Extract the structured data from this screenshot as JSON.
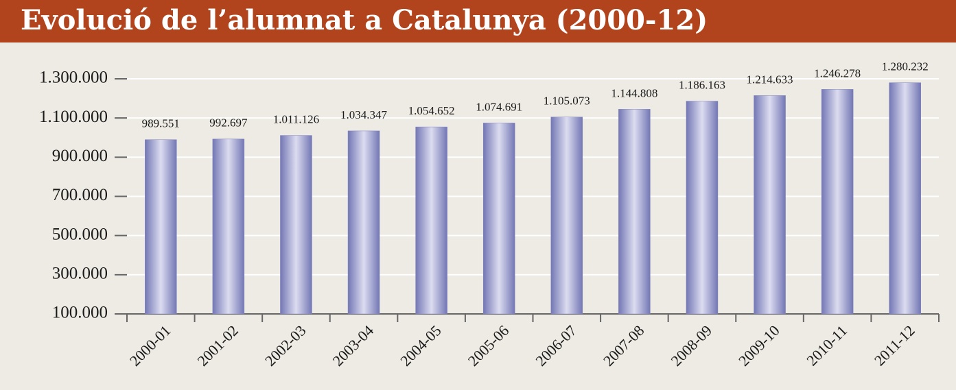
{
  "chart_data": {
    "type": "bar",
    "title": "Evolució de l’alumnat a Catalunya (2000-12)",
    "categories": [
      "2000-01",
      "2001-02",
      "2002-03",
      "2003-04",
      "2004-05",
      "2005-06",
      "2006-07",
      "2007-08",
      "2008-09",
      "2009-10",
      "2010-11",
      "2011-12"
    ],
    "values": [
      989551,
      992697,
      1011126,
      1034347,
      1054652,
      1074691,
      1105073,
      1144808,
      1186163,
      1214633,
      1246278,
      1280232
    ],
    "value_labels": [
      "989.551",
      "992.697",
      "1.011.126",
      "1.034.347",
      "1.054.652",
      "1.074.691",
      "1.105.073",
      "1.144.808",
      "1.186.163",
      "1.214.633",
      "1.246.278",
      "1.280.232"
    ],
    "color": "#8084bf",
    "ylim": [
      100000,
      1300000
    ],
    "yticks": [
      {
        "value": 100000,
        "label": "100.000"
      },
      {
        "value": 300000,
        "label": "300.000"
      },
      {
        "value": 500000,
        "label": "500.000"
      },
      {
        "value": 700000,
        "label": "700.000"
      },
      {
        "value": 900000,
        "label": "900.000"
      },
      {
        "value": 1100000,
        "label": "1.100.000"
      },
      {
        "value": 1300000,
        "label": "1.300.000"
      }
    ],
    "grid": true
  }
}
